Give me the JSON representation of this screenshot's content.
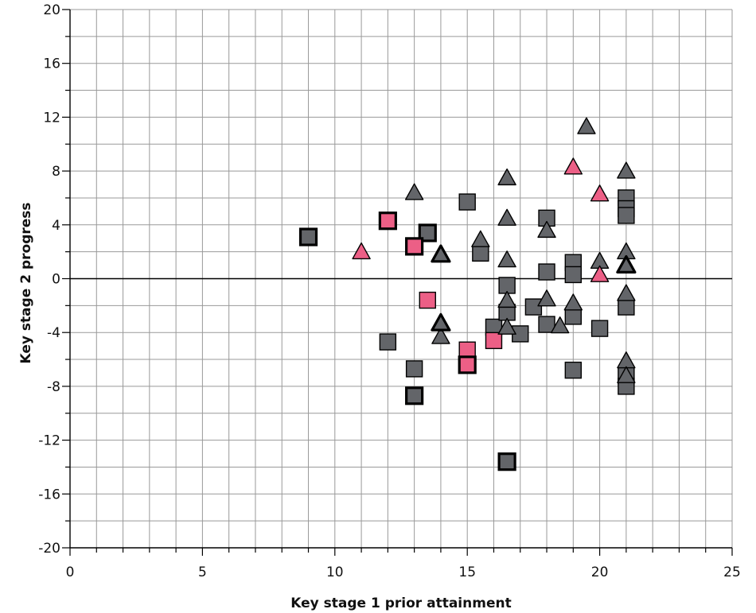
{
  "chart_data": {
    "type": "scatter",
    "title": "",
    "xlabel": "Key stage 1 prior attainment",
    "ylabel": "Key stage 2 progress",
    "xlim": [
      0,
      25
    ],
    "ylim": [
      -20,
      20
    ],
    "x_ticks": [
      0,
      5,
      10,
      15,
      20,
      25
    ],
    "y_ticks": [
      -20,
      -16,
      -12,
      -8,
      -4,
      0,
      4,
      8,
      12,
      16,
      20
    ],
    "grid": true,
    "legend": "none",
    "colors": {
      "grey": "#636569",
      "pink": "#ec5f86",
      "outline": "#000000",
      "grid": "#999999"
    },
    "series": [
      {
        "marker": "square",
        "color": "#636569",
        "points": [
          {
            "x": 12,
            "y": -4.7,
            "bold": false
          },
          {
            "x": 13,
            "y": -6.7,
            "bold": false
          },
          {
            "x": 15,
            "y": 5.7,
            "bold": false
          },
          {
            "x": 15.5,
            "y": 1.9,
            "bold": false
          },
          {
            "x": 16,
            "y": -3.6,
            "bold": false
          },
          {
            "x": 16.5,
            "y": -0.5,
            "bold": false
          },
          {
            "x": 16.5,
            "y": -2.5,
            "bold": false
          },
          {
            "x": 17,
            "y": -4.1,
            "bold": false
          },
          {
            "x": 17.5,
            "y": -2.1,
            "bold": false
          },
          {
            "x": 18,
            "y": 4.5,
            "bold": false
          },
          {
            "x": 18,
            "y": 0.5,
            "bold": false
          },
          {
            "x": 18,
            "y": -3.4,
            "bold": false
          },
          {
            "x": 19,
            "y": 1.2,
            "bold": false
          },
          {
            "x": 19,
            "y": 0.3,
            "bold": false
          },
          {
            "x": 19,
            "y": -2.8,
            "bold": false
          },
          {
            "x": 19,
            "y": -6.8,
            "bold": false
          },
          {
            "x": 20,
            "y": -3.7,
            "bold": false
          },
          {
            "x": 21,
            "y": 6,
            "bold": false
          },
          {
            "x": 21,
            "y": 5.2,
            "bold": false
          },
          {
            "x": 21,
            "y": 4.7,
            "bold": false
          },
          {
            "x": 21,
            "y": -2.1,
            "bold": false
          },
          {
            "x": 21,
            "y": -7.2,
            "bold": false
          },
          {
            "x": 21,
            "y": -8,
            "bold": false
          },
          {
            "x": 9,
            "y": 3.1,
            "bold": true
          },
          {
            "x": 13,
            "y": -8.7,
            "bold": true
          },
          {
            "x": 13.5,
            "y": 3.4,
            "bold": true
          },
          {
            "x": 16.5,
            "y": -13.6,
            "bold": true
          }
        ]
      },
      {
        "marker": "square",
        "color": "#ec5f86",
        "points": [
          {
            "x": 12,
            "y": 4.3,
            "bold": true
          },
          {
            "x": 13,
            "y": 2.4,
            "bold": true
          },
          {
            "x": 13.5,
            "y": -1.6,
            "bold": false
          },
          {
            "x": 15,
            "y": -5.3,
            "bold": false
          },
          {
            "x": 15,
            "y": -6.4,
            "bold": true
          },
          {
            "x": 16,
            "y": -4.6,
            "bold": false
          }
        ]
      },
      {
        "marker": "triangle",
        "color": "#636569",
        "points": [
          {
            "x": 13,
            "y": 6.4,
            "bold": false
          },
          {
            "x": 14,
            "y": -4.3,
            "bold": false
          },
          {
            "x": 15.5,
            "y": 2.9,
            "bold": false
          },
          {
            "x": 16.5,
            "y": 7.5,
            "bold": false
          },
          {
            "x": 16.5,
            "y": 4.5,
            "bold": false
          },
          {
            "x": 16.5,
            "y": 1.4,
            "bold": false
          },
          {
            "x": 16.5,
            "y": -1.6,
            "bold": false
          },
          {
            "x": 16.5,
            "y": -3.6,
            "bold": false
          },
          {
            "x": 18,
            "y": 3.6,
            "bold": false
          },
          {
            "x": 18,
            "y": -1.5,
            "bold": false
          },
          {
            "x": 18.5,
            "y": -3.5,
            "bold": false
          },
          {
            "x": 19,
            "y": -1.8,
            "bold": false
          },
          {
            "x": 19.5,
            "y": 11.3,
            "bold": false
          },
          {
            "x": 20,
            "y": 1.3,
            "bold": false
          },
          {
            "x": 21,
            "y": 8,
            "bold": false
          },
          {
            "x": 21,
            "y": 2,
            "bold": false
          },
          {
            "x": 21,
            "y": -1.1,
            "bold": false
          },
          {
            "x": 21,
            "y": -6.1,
            "bold": false
          },
          {
            "x": 21,
            "y": -7.2,
            "bold": false
          },
          {
            "x": 14,
            "y": 1.8,
            "bold": true
          },
          {
            "x": 14,
            "y": -3.3,
            "bold": true
          },
          {
            "x": 21,
            "y": 1,
            "bold": true
          }
        ]
      },
      {
        "marker": "triangle",
        "color": "#ec5f86",
        "points": [
          {
            "x": 11,
            "y": 2,
            "bold": false
          },
          {
            "x": 19,
            "y": 8.3,
            "bold": false
          },
          {
            "x": 20,
            "y": 6.3,
            "bold": false
          },
          {
            "x": 20,
            "y": 0.3,
            "bold": false
          }
        ]
      }
    ]
  }
}
